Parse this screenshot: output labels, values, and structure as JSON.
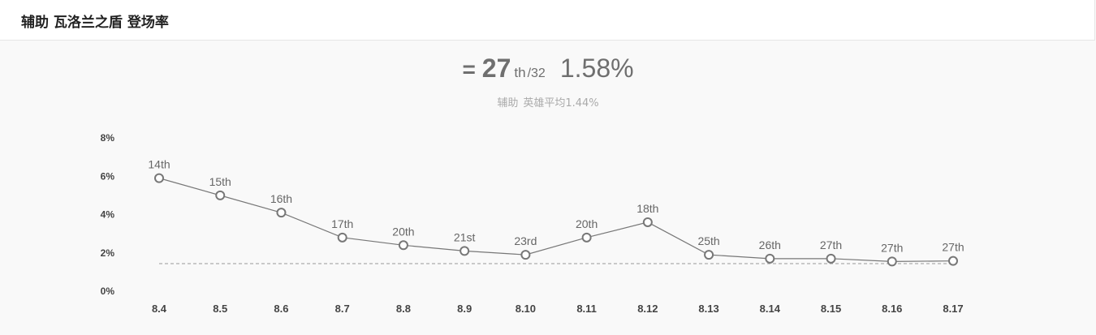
{
  "header": {
    "title": "辅助 瓦洛兰之盾 登场率"
  },
  "summary": {
    "trend_symbol": "=",
    "rank": "27",
    "rank_suffix": "th",
    "rank_total": "/32",
    "rate": "1.58%",
    "role": "辅助",
    "avg_text": "英雄平均1.44%"
  },
  "colors": {
    "line": "#777777",
    "average": "#999999",
    "text": "#6f6f6f"
  },
  "chart_data": {
    "type": "line",
    "title": "辅助 瓦洛兰之盾 登场率",
    "xlabel": "",
    "ylabel": "",
    "categories": [
      "8.4",
      "8.5",
      "8.6",
      "8.7",
      "8.8",
      "8.9",
      "8.10",
      "8.11",
      "8.12",
      "8.13",
      "8.14",
      "8.15",
      "8.16",
      "8.17"
    ],
    "values": [
      5.9,
      5.0,
      4.1,
      2.8,
      2.4,
      2.1,
      1.9,
      2.8,
      3.6,
      1.9,
      1.7,
      1.7,
      1.55,
      1.58
    ],
    "point_labels": [
      "14th",
      "15th",
      "16th",
      "17th",
      "20th",
      "21st",
      "23rd",
      "20th",
      "18th",
      "25th",
      "26th",
      "27th",
      "27th",
      "27th"
    ],
    "average": 1.44,
    "ylim": [
      0,
      8
    ],
    "yticks": [
      0,
      2,
      4,
      6,
      8
    ],
    "ytick_labels": [
      "0%",
      "2%",
      "4%",
      "6%",
      "8%"
    ],
    "grid": false,
    "legend": "none"
  }
}
